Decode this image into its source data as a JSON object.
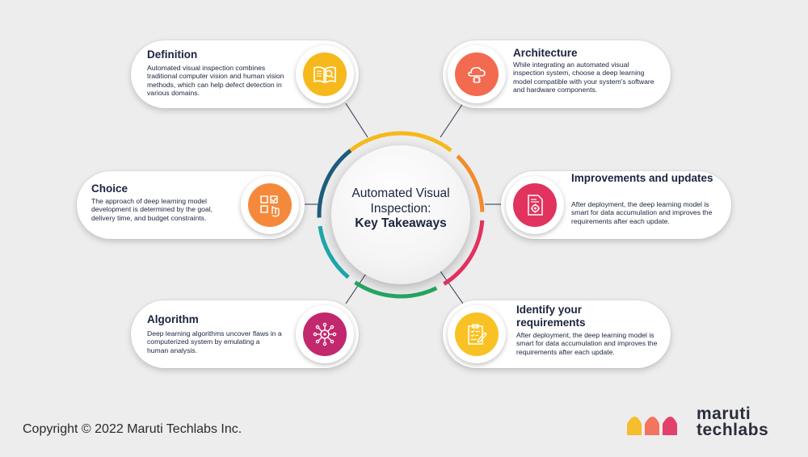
{
  "center": {
    "line1": "Automated Visual",
    "line2": "Inspection:",
    "line3": "Key Takeaways"
  },
  "items": [
    {
      "title": "Definition",
      "desc": "Automated visual inspection combines traditional computer vision and human vision methods, which can help defect detection in various domains.",
      "icon": "open-book-magnifier-icon",
      "color": "#f6b91b"
    },
    {
      "title": "Architecture",
      "desc": "While integrating an automated visual inspection system, choose a deep learning model compatible with your system's software and hardware components.",
      "icon": "cloud-chip-icon",
      "color": "#f26a50"
    },
    {
      "title": "Choice",
      "desc": "The approach of deep learning model development is determined by the goal, delivery time, and budget constraints.",
      "icon": "checklist-hand-icon",
      "color": "#f5893b"
    },
    {
      "title": "Improvements and updates",
      "desc": "After deployment, the deep learning model is smart for data accumulation and improves the requirements after each update.",
      "icon": "document-gear-icon",
      "color": "#e2325e"
    },
    {
      "title": "Algorithm",
      "desc": "Deep learning algorithms uncover flaws in a computerized system by emulating a human analysis.",
      "icon": "neural-network-icon",
      "color": "#c2286d"
    },
    {
      "title": "Identify your requirements",
      "desc": "After deployment, the deep learning model is smart for data accumulation and improves the requirements after each update.",
      "icon": "clipboard-pen-icon",
      "color": "#f8c225"
    }
  ],
  "ring_colors": [
    "#f6b91b",
    "#f28c2a",
    "#e2325e",
    "#25a562",
    "#1fa6ab",
    "#1d5c7a"
  ],
  "footer": {
    "copyright": "Copyright © 2022 Maruti Techlabs Inc."
  },
  "logo": {
    "line1": "maruti",
    "line2": "techlabs",
    "colors": [
      "#f6b91b",
      "#f26a50",
      "#e2325e"
    ]
  }
}
